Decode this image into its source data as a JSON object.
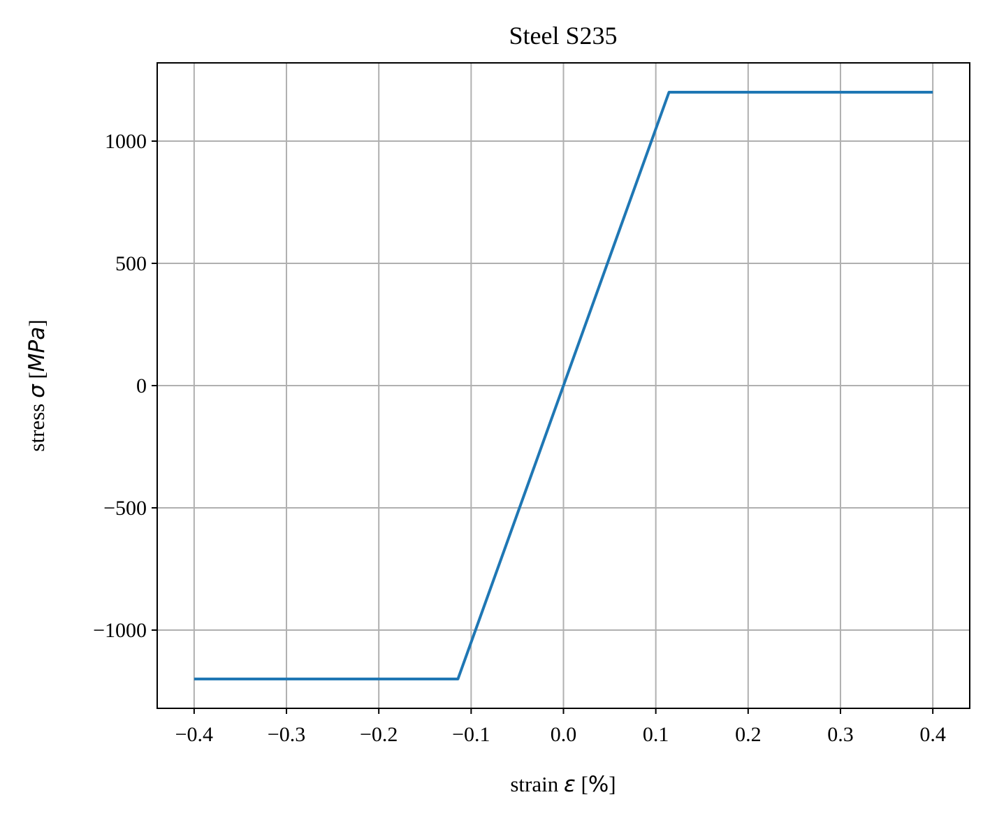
{
  "chart_data": {
    "type": "line",
    "title": "Steel S235",
    "xlabel": {
      "prefix": "strain ",
      "symbol": "ε",
      "open": " [",
      "unit": "%",
      "close": "]"
    },
    "ylabel": {
      "prefix": "stress ",
      "symbol": "σ",
      "open": " [",
      "unit": "MPa",
      "close": "]"
    },
    "xlim": [
      -0.44,
      0.44
    ],
    "ylim": [
      -1320,
      1320
    ],
    "x_ticks": [
      -0.4,
      -0.3,
      -0.2,
      -0.1,
      0.0,
      0.1,
      0.2,
      0.3,
      0.4
    ],
    "x_tick_labels": [
      "−0.4",
      "−0.3",
      "−0.2",
      "−0.1",
      "0.0",
      "0.1",
      "0.2",
      "0.3",
      "0.4"
    ],
    "y_ticks": [
      -1000,
      -500,
      0,
      500,
      1000
    ],
    "y_tick_labels": [
      "−1000",
      "−500",
      "0",
      "500",
      "1000"
    ],
    "grid": true,
    "legend": "none",
    "series": [
      {
        "color": "#1f77b4",
        "x": [
          -0.4,
          -0.1143,
          0.1143,
          0.4
        ],
        "y": [
          -1200,
          -1200,
          1200,
          1200
        ]
      }
    ],
    "colors": {
      "line": "#1f77b4",
      "grid": "#b0b0b0",
      "axes": "#000000"
    }
  }
}
